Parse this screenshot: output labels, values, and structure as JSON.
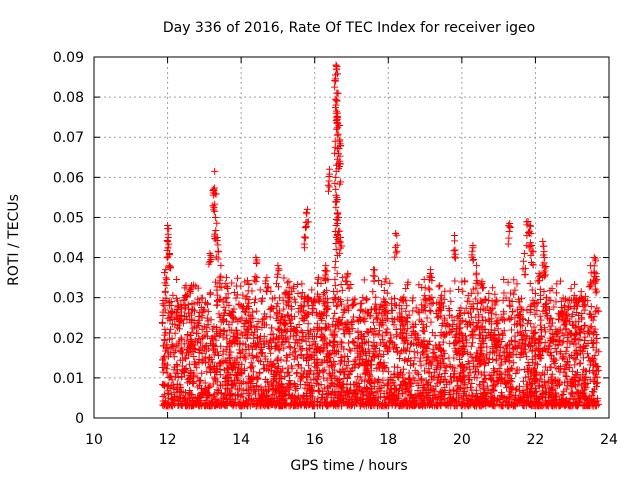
{
  "chart_data": {
    "type": "scatter",
    "title": "Day 336 of 2016, Rate Of TEC Index for receiver igeo",
    "xlabel": "GPS time / hours",
    "ylabel": "ROTI / TECUs",
    "xlim": [
      10,
      24
    ],
    "ylim": [
      0,
      0.09
    ],
    "x_ticks": [
      "10",
      "12",
      "14",
      "16",
      "18",
      "20",
      "22",
      "24"
    ],
    "y_ticks": [
      "0",
      "0.01",
      "0.02",
      "0.03",
      "0.04",
      "0.05",
      "0.06",
      "0.07",
      "0.08",
      "0.09"
    ],
    "grid": true,
    "marker": "+",
    "color": "#ff0000",
    "series": [
      {
        "name": "ROTI",
        "x_range": [
          11.85,
          23.72
        ],
        "bulk_range": [
          0.003,
          0.03
        ],
        "points": [
          [
            12.0,
            0.048
          ],
          [
            12.02,
            0.045
          ],
          [
            12.05,
            0.041
          ],
          [
            11.95,
            0.037
          ],
          [
            12.1,
            0.029
          ],
          [
            12.3,
            0.028
          ],
          [
            12.5,
            0.033
          ],
          [
            12.65,
            0.033
          ],
          [
            13.15,
            0.041
          ],
          [
            13.25,
            0.057
          ],
          [
            13.28,
            0.0615
          ],
          [
            13.3,
            0.05
          ],
          [
            13.35,
            0.045
          ],
          [
            13.45,
            0.038
          ],
          [
            13.6,
            0.035
          ],
          [
            14.4,
            0.04
          ],
          [
            14.7,
            0.035
          ],
          [
            15.0,
            0.038
          ],
          [
            15.3,
            0.034
          ],
          [
            15.75,
            0.0475
          ],
          [
            15.8,
            0.052
          ],
          [
            16.1,
            0.035
          ],
          [
            16.3,
            0.038
          ],
          [
            16.4,
            0.062
          ],
          [
            16.58,
            0.088
          ],
          [
            16.6,
            0.081
          ],
          [
            16.62,
            0.076
          ],
          [
            16.65,
            0.073
          ],
          [
            16.67,
            0.069
          ],
          [
            16.68,
            0.064
          ],
          [
            16.6,
            0.055
          ],
          [
            16.65,
            0.05
          ],
          [
            16.7,
            0.045
          ],
          [
            16.9,
            0.036
          ],
          [
            17.6,
            0.037
          ],
          [
            18.2,
            0.046
          ],
          [
            18.5,
            0.028
          ],
          [
            19.15,
            0.037
          ],
          [
            19.4,
            0.033
          ],
          [
            19.8,
            0.0455
          ],
          [
            20.3,
            0.043
          ],
          [
            20.4,
            0.038
          ],
          [
            20.55,
            0.034
          ],
          [
            21.3,
            0.0485
          ],
          [
            21.8,
            0.049
          ],
          [
            21.85,
            0.048
          ],
          [
            21.9,
            0.043
          ],
          [
            21.7,
            0.041
          ],
          [
            22.2,
            0.044
          ],
          [
            22.25,
            0.04
          ],
          [
            22.1,
            0.036
          ],
          [
            22.3,
            0.03
          ],
          [
            22.8,
            0.028
          ],
          [
            23.5,
            0.038
          ],
          [
            23.6,
            0.04
          ],
          [
            23.65,
            0.036
          ]
        ]
      }
    ]
  }
}
